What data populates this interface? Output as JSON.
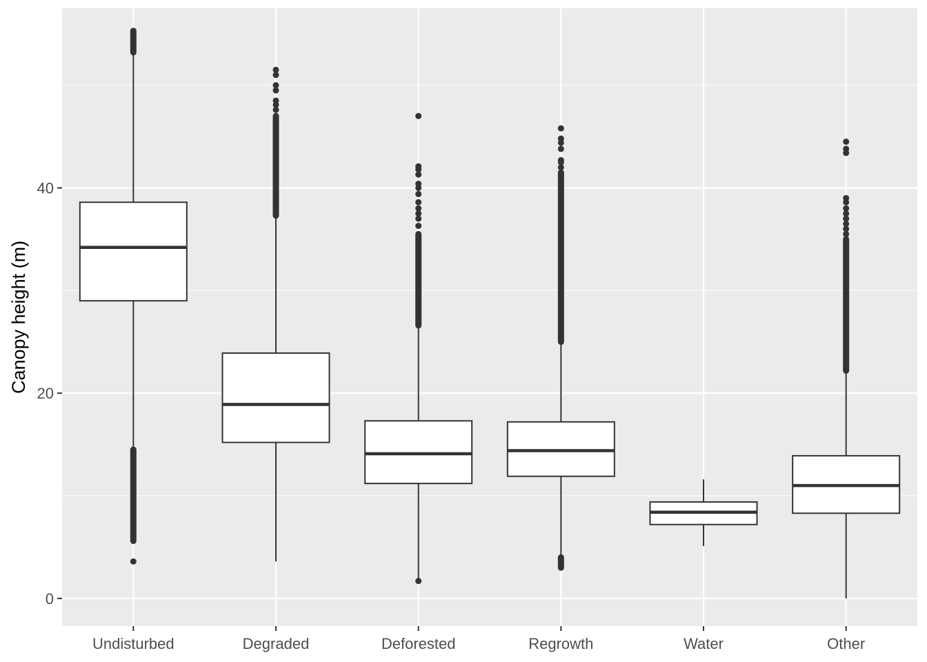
{
  "chart_data": {
    "type": "boxplot",
    "title": "",
    "xlabel": "",
    "ylabel": "Canopy height (m)",
    "ylim": [
      -2.7,
      57.5
    ],
    "yticks": [
      0,
      20,
      40
    ],
    "ytick_labels": [
      "0",
      "20",
      "40"
    ],
    "grid": true,
    "categories": [
      "Undisturbed",
      "Degraded",
      "Deforested",
      "Regrowth",
      "Water",
      "Other"
    ],
    "boxes": [
      {
        "category": "Undisturbed",
        "whisker_low": 14.5,
        "q1": 29.0,
        "median": 34.2,
        "q3": 38.6,
        "whisker_high": 53.2,
        "outliers_low_range": [
          5.6,
          14.5
        ],
        "outliers_high_range": [
          53.2,
          55.3
        ],
        "outlier_points": [
          3.6
        ]
      },
      {
        "category": "Degraded",
        "whisker_low": 3.6,
        "q1": 15.2,
        "median": 18.9,
        "q3": 23.9,
        "whisker_high": 37.3,
        "outliers_high_range": [
          37.3,
          47.0
        ],
        "outlier_points": [
          47.6,
          48.1,
          48.5,
          49.5,
          50.0,
          51.0,
          51.5
        ]
      },
      {
        "category": "Deforested",
        "whisker_low": 1.7,
        "q1": 11.2,
        "median": 14.1,
        "q3": 17.3,
        "whisker_high": 26.6,
        "outliers_high_range": [
          26.6,
          35.5
        ],
        "outlier_points": [
          36.3,
          37.0,
          37.5,
          38.0,
          38.6,
          39.4,
          40.0,
          40.4,
          41.3,
          41.8,
          42.1,
          47.0,
          1.7
        ]
      },
      {
        "category": "Regrowth",
        "whisker_low": 4.0,
        "q1": 11.9,
        "median": 14.4,
        "q3": 17.2,
        "whisker_high": 25.0,
        "outliers_low_range": [
          3.0,
          4.0
        ],
        "outliers_high_range": [
          25.0,
          41.5
        ],
        "outlier_points": [
          42.0,
          42.5,
          42.7,
          43.8,
          44.4,
          44.8,
          45.8
        ]
      },
      {
        "category": "Water",
        "whisker_low": 5.1,
        "q1": 7.2,
        "median": 8.4,
        "q3": 9.4,
        "whisker_high": 11.6,
        "outlier_points": []
      },
      {
        "category": "Other",
        "whisker_low": 0.0,
        "q1": 8.3,
        "median": 11.0,
        "q3": 13.9,
        "whisker_high": 22.2,
        "outliers_high_range": [
          22.2,
          35.0
        ],
        "outlier_points": [
          35.5,
          36.0,
          36.5,
          37.0,
          37.5,
          38.0,
          38.6,
          39.0,
          43.4,
          43.8,
          44.5
        ]
      }
    ],
    "colors": {
      "panel_background": "#ebebeb",
      "grid_major": "#ffffff",
      "box_fill": "#ffffff",
      "box_stroke": "#333333",
      "outlier": "#333333",
      "tick_text": "#4d4d4d",
      "axis_title": "#000000"
    }
  }
}
